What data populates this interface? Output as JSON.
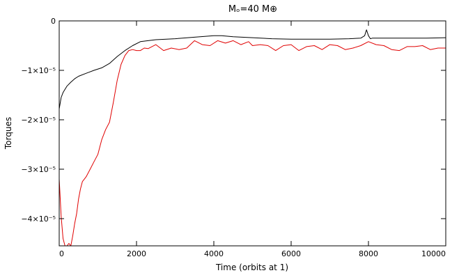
{
  "chart_data": {
    "type": "line",
    "title": "Mₒ=40 M⊕",
    "xlabel": "Time (orbits at 1)",
    "ylabel": "Torques",
    "xlim": [
      0,
      10000
    ],
    "ylim": [
      -4.55e-05,
      0
    ],
    "x_ticks": [
      {
        "value": 0,
        "label": "0"
      },
      {
        "value": 2000,
        "label": "2000"
      },
      {
        "value": 4000,
        "label": "4000"
      },
      {
        "value": 6000,
        "label": "6000"
      },
      {
        "value": 8000,
        "label": "8000"
      },
      {
        "value": 10000,
        "label": "10000"
      }
    ],
    "y_ticks": [
      {
        "value": 0,
        "label": "0"
      },
      {
        "value": -1e-05,
        "label": "−1×10⁻⁵"
      },
      {
        "value": -2e-05,
        "label": "−2×10⁻⁵"
      },
      {
        "value": -3e-05,
        "label": "−3×10⁻⁵"
      },
      {
        "value": -4e-05,
        "label": "−4×10⁻⁵"
      }
    ],
    "grid": false,
    "legend": "none",
    "series": [
      {
        "color": "#000000",
        "x": [
          0,
          50,
          100,
          200,
          300,
          400,
          500,
          700,
          900,
          1100,
          1300,
          1500,
          1700,
          1900,
          2100,
          2500,
          3000,
          3500,
          4000,
          4200,
          4500,
          5000,
          5500,
          6000,
          7000,
          7500,
          7800,
          7900,
          7950,
          8000,
          8050,
          8100,
          8200,
          8500,
          9000,
          9500,
          10000
        ],
        "y": [
          -1.78e-05,
          -1.55e-05,
          -1.45e-05,
          -1.32e-05,
          -1.24e-05,
          -1.17e-05,
          -1.12e-05,
          -1.06e-05,
          -1e-05,
          -9.5e-06,
          -8.6e-06,
          -7.2e-06,
          -6e-06,
          -5e-06,
          -4.2e-06,
          -3.8e-06,
          -3.6e-06,
          -3.3e-06,
          -3e-06,
          -3e-06,
          -3.2e-06,
          -3.4e-06,
          -3.6e-06,
          -3.7e-06,
          -3.7e-06,
          -3.6e-06,
          -3.5e-06,
          -3e-06,
          -1.8e-06,
          -3e-06,
          -3.6e-06,
          -3.5e-06,
          -3.5e-06,
          -3.5e-06,
          -3.5e-06,
          -3.5e-06,
          -3.4e-06
        ]
      },
      {
        "color": "#e00000",
        "x": [
          0,
          50,
          100,
          150,
          200,
          250,
          300,
          350,
          400,
          450,
          500,
          550,
          600,
          650,
          700,
          800,
          900,
          1000,
          1100,
          1200,
          1300,
          1400,
          1500,
          1600,
          1700,
          1800,
          1900,
          2000,
          2100,
          2200,
          2300,
          2400,
          2500,
          2700,
          2900,
          3100,
          3300,
          3500,
          3700,
          3900,
          4100,
          4300,
          4500,
          4700,
          4900,
          5000,
          5200,
          5400,
          5600,
          5800,
          6000,
          6200,
          6400,
          6600,
          6800,
          7000,
          7200,
          7400,
          7600,
          7800,
          8000,
          8200,
          8400,
          8600,
          8800,
          9000,
          9200,
          9400,
          9600,
          9800,
          10000
        ],
        "y": [
          -3.2e-05,
          -3.95e-05,
          -4.4e-05,
          -4.55e-05,
          -4.55e-05,
          -4.5e-05,
          -4.55e-05,
          -4.35e-05,
          -4.1e-05,
          -3.9e-05,
          -3.6e-05,
          -3.4e-05,
          -3.25e-05,
          -3.2e-05,
          -3.15e-05,
          -3e-05,
          -2.85e-05,
          -2.7e-05,
          -2.4e-05,
          -2.2e-05,
          -2.05e-05,
          -1.65e-05,
          -1.2e-05,
          -8.8e-06,
          -7e-06,
          -6e-06,
          -5.8e-06,
          -6e-06,
          -6e-06,
          -5.5e-06,
          -5.6e-06,
          -5.2e-06,
          -4.8e-06,
          -6e-06,
          -5.5e-06,
          -5.8e-06,
          -5.5e-06,
          -4e-06,
          -4.8e-06,
          -5e-06,
          -4e-06,
          -4.5e-06,
          -4e-06,
          -4.8e-06,
          -4.2e-06,
          -5e-06,
          -4.8e-06,
          -5e-06,
          -6e-06,
          -5e-06,
          -4.8e-06,
          -6e-06,
          -5.2e-06,
          -5e-06,
          -5.8e-06,
          -4.8e-06,
          -5e-06,
          -5.8e-06,
          -5.5e-06,
          -5e-06,
          -4.2e-06,
          -4.8e-06,
          -5e-06,
          -5.8e-06,
          -6e-06,
          -5.2e-06,
          -5.2e-06,
          -5e-06,
          -5.8e-06,
          -5.5e-06,
          -5.5e-06
        ]
      }
    ]
  }
}
